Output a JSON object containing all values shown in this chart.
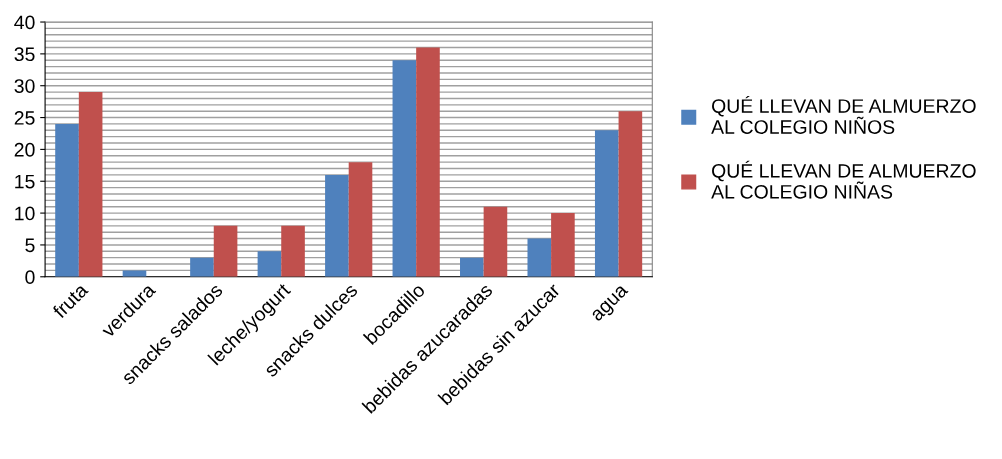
{
  "chart_data": {
    "type": "bar",
    "categories": [
      "fruta",
      "verdura",
      "snacks salados",
      "leche/yogurt",
      "snacks dulces",
      "bocadillo",
      "bebidas azucaradas",
      "bebidas sin azucar",
      "agua"
    ],
    "series": [
      {
        "name": "QUÉ LLEVAN DE ALMUERZO AL COLEGIO NIÑOS",
        "color": "#4f81bd",
        "values": [
          24,
          1,
          3,
          4,
          16,
          34,
          3,
          6,
          23
        ]
      },
      {
        "name": "QUÉ LLEVAN DE ALMUERZO AL COLEGIO NIÑAS",
        "color": "#c0504d",
        "values": [
          29,
          0,
          8,
          8,
          18,
          36,
          11,
          10,
          26
        ]
      }
    ],
    "ylim": [
      0,
      40
    ],
    "yticks": [
      0,
      {
        "value": 1,
        "label": null
      },
      {
        "value": 2,
        "label": null
      },
      {
        "value": 3,
        "label": null
      },
      {
        "value": 4,
        "label": null
      },
      5,
      {
        "value": 6,
        "label": null
      },
      {
        "value": 7,
        "label": null
      },
      {
        "value": 8,
        "label": null
      },
      {
        "value": 9,
        "label": null
      },
      10,
      {
        "value": 11,
        "label": null
      },
      {
        "value": 12,
        "label": null
      },
      {
        "value": 13,
        "label": null
      },
      {
        "value": 14,
        "label": null
      },
      15,
      {
        "value": 16,
        "label": null
      },
      {
        "value": 17,
        "label": null
      },
      {
        "value": 18,
        "label": null
      },
      {
        "value": 19,
        "label": null
      },
      20,
      {
        "value": 21,
        "label": null
      },
      {
        "value": 22,
        "label": null
      },
      {
        "value": 23,
        "label": null
      },
      {
        "value": 24,
        "label": null
      },
      25,
      {
        "value": 26,
        "label": null
      },
      {
        "value": 27,
        "label": null
      },
      {
        "value": 28,
        "label": null
      },
      {
        "value": 29,
        "label": null
      },
      30,
      {
        "value": 31,
        "label": null
      },
      {
        "value": 32,
        "label": null
      },
      {
        "value": 33,
        "label": null
      },
      {
        "value": 34,
        "label": null
      },
      35,
      {
        "value": 36,
        "label": null
      },
      {
        "value": 37,
        "label": null
      },
      {
        "value": 38,
        "label": null
      },
      {
        "value": 39,
        "label": null
      },
      40
    ],
    "grid": "y",
    "legend": "right"
  }
}
